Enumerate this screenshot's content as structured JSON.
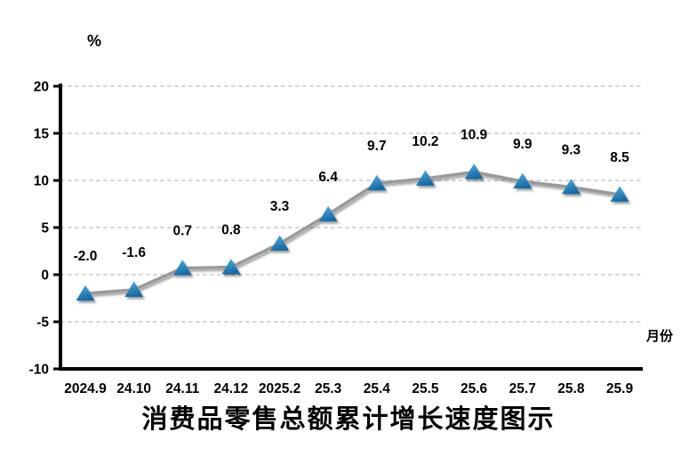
{
  "chart_data": {
    "type": "line",
    "title": "消费品零售总额累计增长速度图示",
    "ylabel": "%",
    "xlabel": "月份",
    "categories": [
      "2024.9",
      "24.10",
      "24.11",
      "24.12",
      "2025.2",
      "25.3",
      "25.4",
      "25.5",
      "25.6",
      "25.7",
      "25.8",
      "25.9"
    ],
    "values": [
      -2.0,
      -1.6,
      0.7,
      0.8,
      3.3,
      6.4,
      9.7,
      10.2,
      10.9,
      9.9,
      9.3,
      8.5
    ],
    "point_labels": [
      "-2.0",
      "-1.6",
      "0.7",
      "0.8",
      "3.3",
      "6.4",
      "9.7",
      "10.2",
      "10.9",
      "9.9",
      "9.3",
      "8.5"
    ],
    "yticks": [
      20,
      15,
      10,
      5,
      0,
      -5,
      -10
    ],
    "ylim": [
      -10,
      20
    ],
    "grid": true,
    "legend": false,
    "marker": "triangle",
    "colors": {
      "line": "#999999",
      "marker_top": "#55AFE3",
      "marker_bottom": "#166BA3",
      "gridline": "#ACACAC",
      "axis": "#000000",
      "text": "#000000"
    }
  }
}
